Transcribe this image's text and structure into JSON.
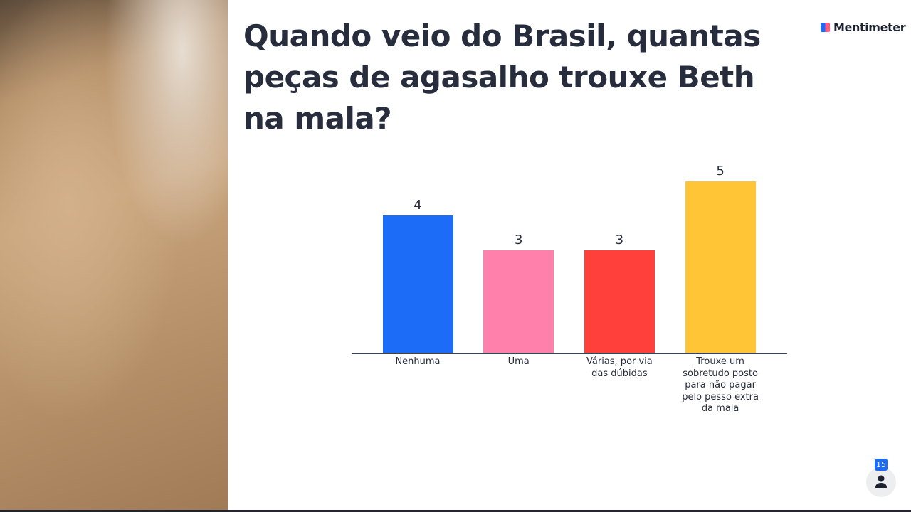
{
  "chart_data": {
    "type": "bar",
    "title": "Quando veio do Brasil, quantas peças de agasalho trouxe Beth na mala?",
    "categories": [
      "Nenhuma",
      "Uma",
      "Várias, por via das dúbidas",
      "Trouxe um sobretudo posto para não pagar pelo pesso extra da mala"
    ],
    "values": [
      4,
      3,
      3,
      5
    ],
    "colors": [
      "#1c6cf7",
      "#ff80ab",
      "#ff403b",
      "#ffc537"
    ]
  },
  "brand": "Mentimeter",
  "participant_count": 15
}
